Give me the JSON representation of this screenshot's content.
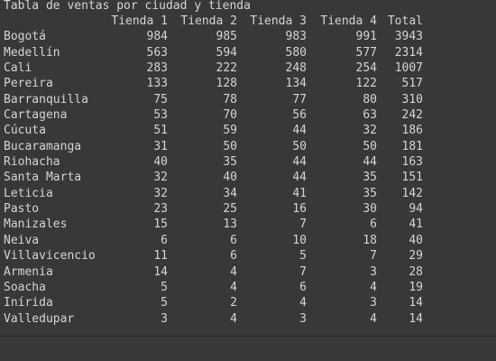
{
  "output": {
    "title": "Tabla de ventas por ciudad y tienda",
    "columns": [
      "",
      "Tienda 1",
      "Tienda 2",
      "Tienda 3",
      "Tienda 4",
      "Total"
    ],
    "rows": [
      [
        "Bogotá",
        "984",
        "985",
        "983",
        "991",
        "3943"
      ],
      [
        "Medellín",
        "563",
        "594",
        "580",
        "577",
        "2314"
      ],
      [
        "Cali",
        "283",
        "222",
        "248",
        "254",
        "1007"
      ],
      [
        "Pereira",
        "133",
        "128",
        "134",
        "122",
        "517"
      ],
      [
        "Barranquilla",
        "75",
        "78",
        "77",
        "80",
        "310"
      ],
      [
        "Cartagena",
        "53",
        "70",
        "56",
        "63",
        "242"
      ],
      [
        "Cúcuta",
        "51",
        "59",
        "44",
        "32",
        "186"
      ],
      [
        "Bucaramanga",
        "31",
        "50",
        "50",
        "50",
        "181"
      ],
      [
        "Riohacha",
        "40",
        "35",
        "44",
        "44",
        "163"
      ],
      [
        "Santa Marta",
        "32",
        "40",
        "44",
        "35",
        "151"
      ],
      [
        "Leticia",
        "32",
        "34",
        "41",
        "35",
        "142"
      ],
      [
        "Pasto",
        "23",
        "25",
        "16",
        "30",
        "94"
      ],
      [
        "Manizales",
        "15",
        "13",
        "7",
        "6",
        "41"
      ],
      [
        "Neiva",
        "6",
        "6",
        "10",
        "18",
        "40"
      ],
      [
        "Villavicencio",
        "11",
        "6",
        "5",
        "7",
        "29"
      ],
      [
        "Armenia",
        "14",
        "4",
        "7",
        "3",
        "28"
      ],
      [
        "Soacha",
        "5",
        "4",
        "6",
        "4",
        "19"
      ],
      [
        "Inírida",
        "5",
        "2",
        "4",
        "3",
        "14"
      ],
      [
        "Valledupar",
        "3",
        "4",
        "3",
        "4",
        "14"
      ]
    ]
  },
  "colors": {
    "background": "#383838",
    "text": "#d5d5d5",
    "divider": "#2c2c2c"
  }
}
